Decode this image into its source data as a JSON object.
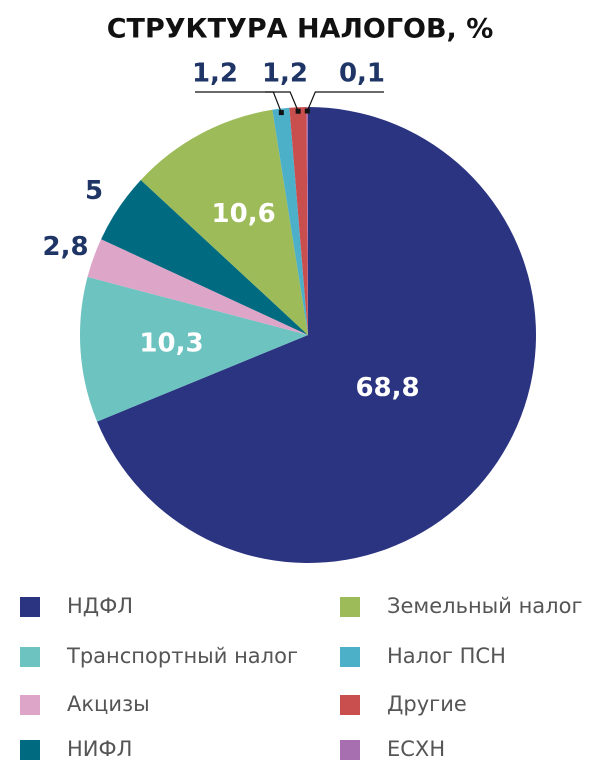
{
  "chart_data": {
    "type": "pie",
    "title": "СТРУКТУРА НАЛОГОВ, %",
    "categories": [
      "НДФЛ",
      "Транспортный налог",
      "Акцизы",
      "НИФЛ",
      "Земельный налог",
      "Налог ПСН",
      "Другие",
      "ЕСХН"
    ],
    "values": [
      68.8,
      10.3,
      2.8,
      5,
      10.6,
      1.2,
      1.2,
      0.1
    ],
    "value_labels": [
      "68,8",
      "10,3",
      "2,8",
      "5",
      "10,6",
      "1,2",
      "1,2",
      "0,1"
    ],
    "colors": [
      "#2b3480",
      "#6cc3c0",
      "#dda5c8",
      "#006a80",
      "#9dbb59",
      "#4db0c9",
      "#c94f4f",
      "#a86fb0"
    ],
    "legend": "bottom"
  }
}
